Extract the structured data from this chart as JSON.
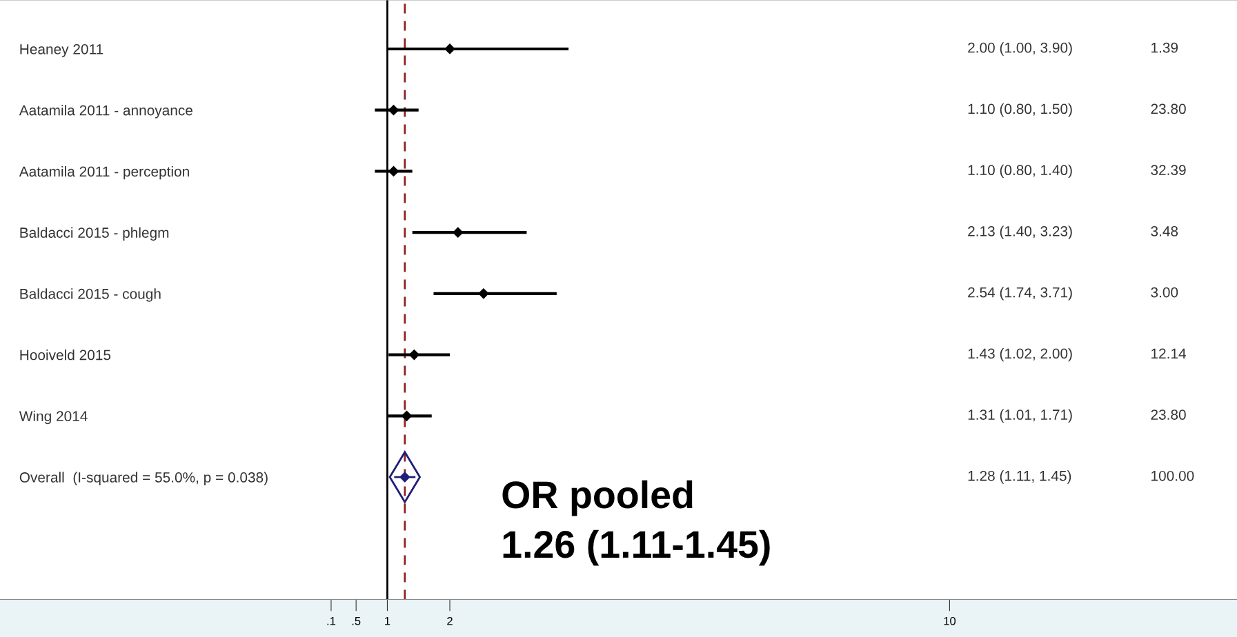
{
  "chart_data": {
    "type": "scatter",
    "orientation": "horizontal",
    "categories": [
      "Heaney 2011",
      "Aatamila 2011 - annoyance",
      "Aatamila 2011 - perception",
      "Baldacci 2015 - phlegm",
      "Baldacci 2015 - cough",
      "Hooiveld 2015",
      "Wing 2014",
      "Overall  (I-squared = 55.0%, p = 0.038)"
    ],
    "series": [
      {
        "color": "#000000",
        "colors": [
          "#000000",
          "#000000",
          "#000000",
          "#000000",
          "#000000",
          "#000000",
          "#000000",
          "#1f1f7a"
        ],
        "marker": "diamond",
        "values": [
          2.0,
          1.1,
          1.1,
          2.13,
          2.54,
          1.43,
          1.31,
          1.28
        ],
        "errors": [
          [
            1.0,
            3.9
          ],
          [
            0.8,
            1.5
          ],
          [
            0.8,
            1.4
          ],
          [
            1.4,
            3.23
          ],
          [
            1.74,
            3.71
          ],
          [
            1.02,
            2.0
          ],
          [
            1.01,
            1.71
          ],
          [
            1.11,
            1.45
          ]
        ]
      }
    ],
    "xlim": [
      -5.2,
      14.6
    ],
    "xticks": [
      {
        "value": 0.1,
        "label": ".1"
      },
      {
        "value": 0.5,
        "label": ".5"
      },
      1,
      2,
      10
    ],
    "ref_lines": [
      {
        "axis": "x",
        "value": 1,
        "color": "#000000",
        "line_style": "solid"
      },
      {
        "axis": "x",
        "value": 1.28,
        "color": "#8b2323",
        "line_style": "dashed"
      }
    ],
    "annotations": [
      "2.00 (1.00, 3.90)",
      "1.39",
      "1.10 (0.80, 1.50)",
      "23.80",
      "1.10 (0.80, 1.40)",
      "32.39",
      "2.13 (1.40, 3.23)",
      "3.48",
      "2.54 (1.74, 3.71)",
      "3.00",
      "1.43 (1.02, 2.00)",
      "12.14",
      "1.31 (1.01, 1.71)",
      "23.80",
      "1.28 (1.11, 1.45)",
      "100.00",
      "OR pooled\n1.26 (1.11-1.45)"
    ],
    "grid": false,
    "legend": false
  }
}
